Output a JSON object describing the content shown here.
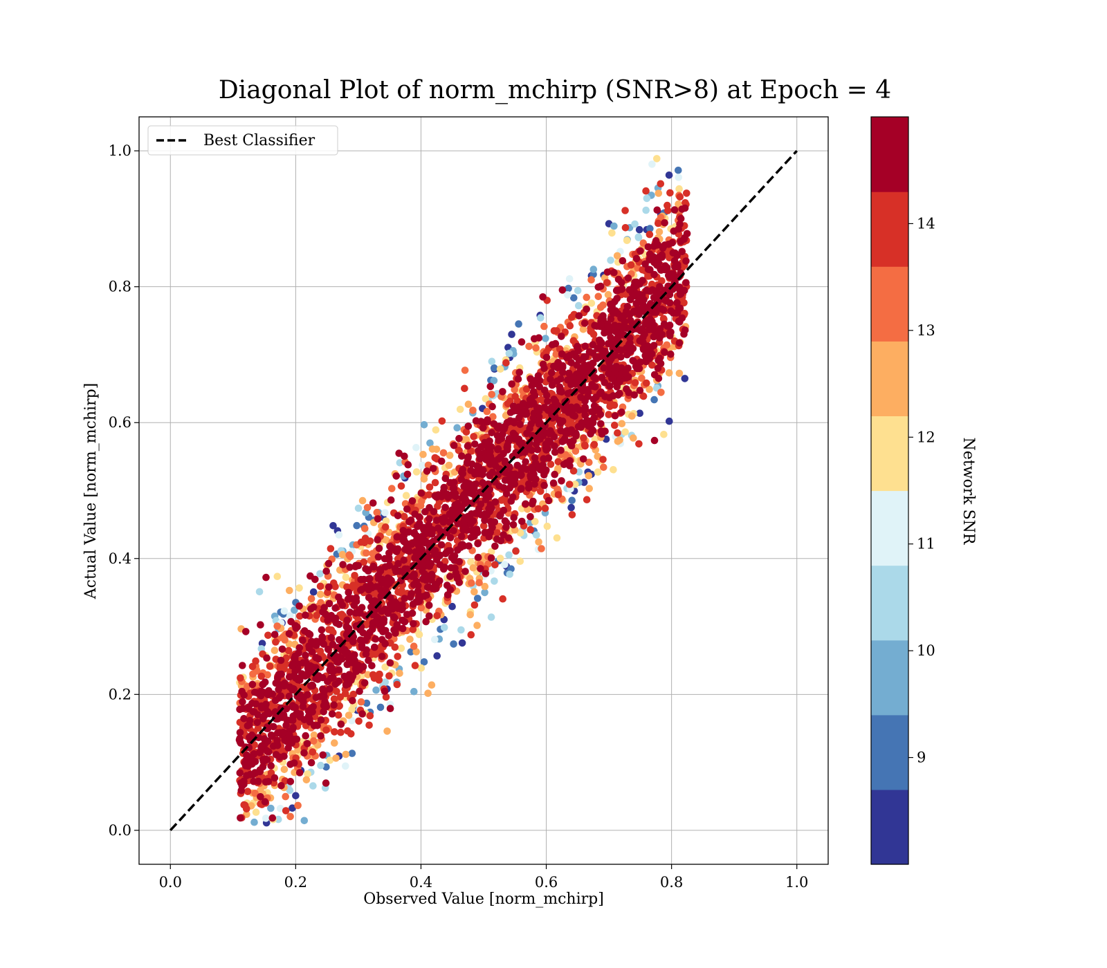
{
  "chart_data": {
    "type": "scatter",
    "title": "Diagonal Plot of norm_mchirp (SNR>8) at Epoch = 4",
    "xlabel": "Observed Value [norm_mchirp]",
    "ylabel": "Actual Value [norm_mchirp]",
    "xlim": [
      -0.05,
      1.05
    ],
    "ylim": [
      -0.05,
      1.05
    ],
    "xticks": [
      "0.0",
      "0.2",
      "0.4",
      "0.6",
      "0.8",
      "1.0"
    ],
    "yticks": [
      "0.0",
      "0.2",
      "0.4",
      "0.6",
      "0.8",
      "1.0"
    ],
    "grid": true,
    "legend": {
      "position": "top-left",
      "entries": [
        "Best Classifier"
      ]
    },
    "reference_line": {
      "name": "Best Classifier",
      "x": [
        0.0,
        1.0
      ],
      "y": [
        0.0,
        1.0
      ],
      "style": "dashed",
      "color": "#000000"
    },
    "colorbar": {
      "label": "Network SNR",
      "range": [
        8.0,
        15.0
      ],
      "tick_values": [
        9,
        10,
        11,
        12,
        13,
        14
      ],
      "tick_labels": [
        "9",
        "10",
        "11",
        "12",
        "13",
        "14"
      ],
      "bands": [
        "#313695",
        "#4575b4",
        "#74add1",
        "#abd9e9",
        "#e0f3f8",
        "#fee090",
        "#fdae61",
        "#f46d43",
        "#d73027",
        "#a50026"
      ]
    },
    "scatter_summary": {
      "x_range": [
        0.11,
        0.82
      ],
      "y_range": [
        0.01,
        0.99
      ],
      "center_line_slope": 1.0,
      "band_halfwidth": 0.17,
      "color_encodes": "Network SNR"
    }
  }
}
